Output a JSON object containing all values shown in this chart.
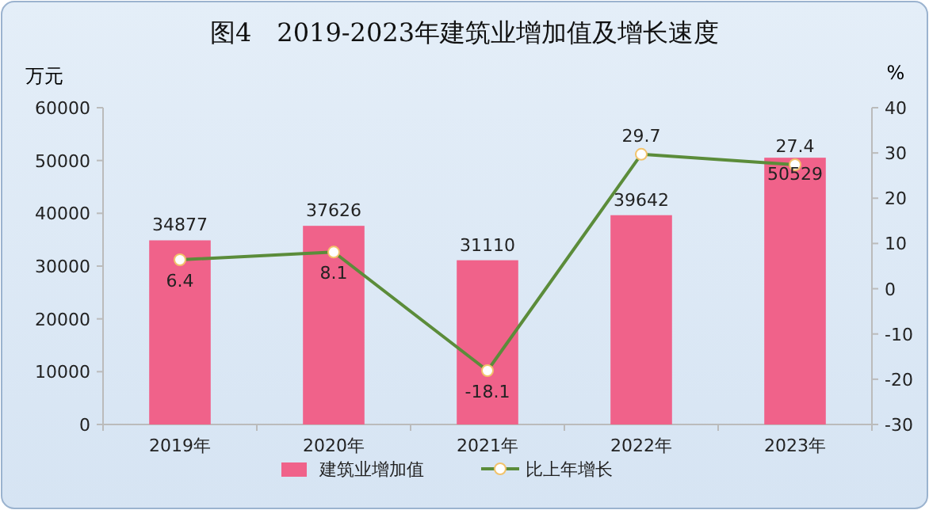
{
  "chart_data": {
    "type": "bar",
    "title": "图4　2019-2023年建筑业增加值及增长速度",
    "ylabel": "万元",
    "y2label": "%",
    "categories": [
      "2019年",
      "2020年",
      "2021年",
      "2022年",
      "2023年"
    ],
    "series": [
      {
        "name": "建筑业增加值",
        "color": "#f0628a",
        "values": [
          34877,
          37626,
          31110,
          39642,
          50529
        ]
      },
      {
        "name": "比上年增长",
        "type": "line",
        "axis": "y2",
        "color": "#5b8c3a",
        "marker": "circle",
        "values": [
          6.4,
          8.1,
          -18.1,
          29.7,
          27.4
        ]
      }
    ],
    "ylim": [
      0,
      60000
    ],
    "yticks": [
      0,
      10000,
      20000,
      30000,
      40000,
      50000,
      60000
    ],
    "y2lim": [
      -30,
      40
    ],
    "y2ticks": [
      -30,
      -20,
      -10,
      0,
      10,
      20,
      30,
      40
    ],
    "data_labels": true,
    "legend": "bottom",
    "grid": false
  }
}
